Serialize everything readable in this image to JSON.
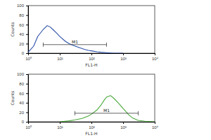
{
  "chart_data": [
    {
      "type": "line",
      "log": "x",
      "color": "#2a4fa8",
      "x_label": "FL1-H",
      "y_label": "Counts",
      "x": [
        1,
        1.5,
        2,
        3,
        4,
        5,
        6,
        8,
        10,
        15,
        20,
        30,
        40,
        60,
        80,
        100,
        150,
        200,
        300,
        500,
        1000
      ],
      "values": [
        2,
        15,
        35,
        50,
        58,
        55,
        50,
        42,
        35,
        25,
        20,
        15,
        12,
        8,
        6,
        5,
        3,
        2,
        1,
        0,
        0
      ],
      "xlim": [
        1,
        10000
      ],
      "xticks": [
        {
          "value": 1,
          "label": "10⁰"
        },
        {
          "value": 10,
          "label": "10¹"
        },
        {
          "value": 100,
          "label": "10²"
        },
        {
          "value": 1000,
          "label": "10³"
        },
        {
          "value": 10000,
          "label": "10⁴"
        }
      ],
      "ylim": [
        0,
        100
      ],
      "yticks": [
        0,
        20,
        40,
        60,
        80,
        100
      ],
      "annotations": [
        {
          "text": "M1",
          "x_range": [
            3,
            300
          ],
          "y": 18
        }
      ]
    },
    {
      "type": "line",
      "log": "x",
      "color": "#4aa83a",
      "x_label": "FL1-H",
      "y_label": "Counts",
      "x": [
        10,
        20,
        30,
        50,
        80,
        100,
        150,
        200,
        250,
        300,
        400,
        500,
        700,
        1000,
        1500,
        2000,
        3000,
        5000,
        10000
      ],
      "values": [
        0,
        2,
        4,
        7,
        12,
        16,
        25,
        35,
        45,
        52,
        55,
        50,
        40,
        28,
        15,
        8,
        3,
        1,
        0
      ],
      "xlim": [
        1,
        10000
      ],
      "xticks": [
        {
          "value": 1,
          "label": "10⁰"
        },
        {
          "value": 10,
          "label": "10¹"
        },
        {
          "value": 100,
          "label": "10²"
        },
        {
          "value": 1000,
          "label": "10³"
        },
        {
          "value": 10000,
          "label": "10⁴"
        }
      ],
      "ylim": [
        0,
        100
      ],
      "yticks": [
        0,
        20,
        40,
        60,
        80,
        100
      ],
      "annotations": [
        {
          "text": "M1",
          "x_range": [
            30,
            3000
          ],
          "y": 18
        }
      ]
    }
  ]
}
